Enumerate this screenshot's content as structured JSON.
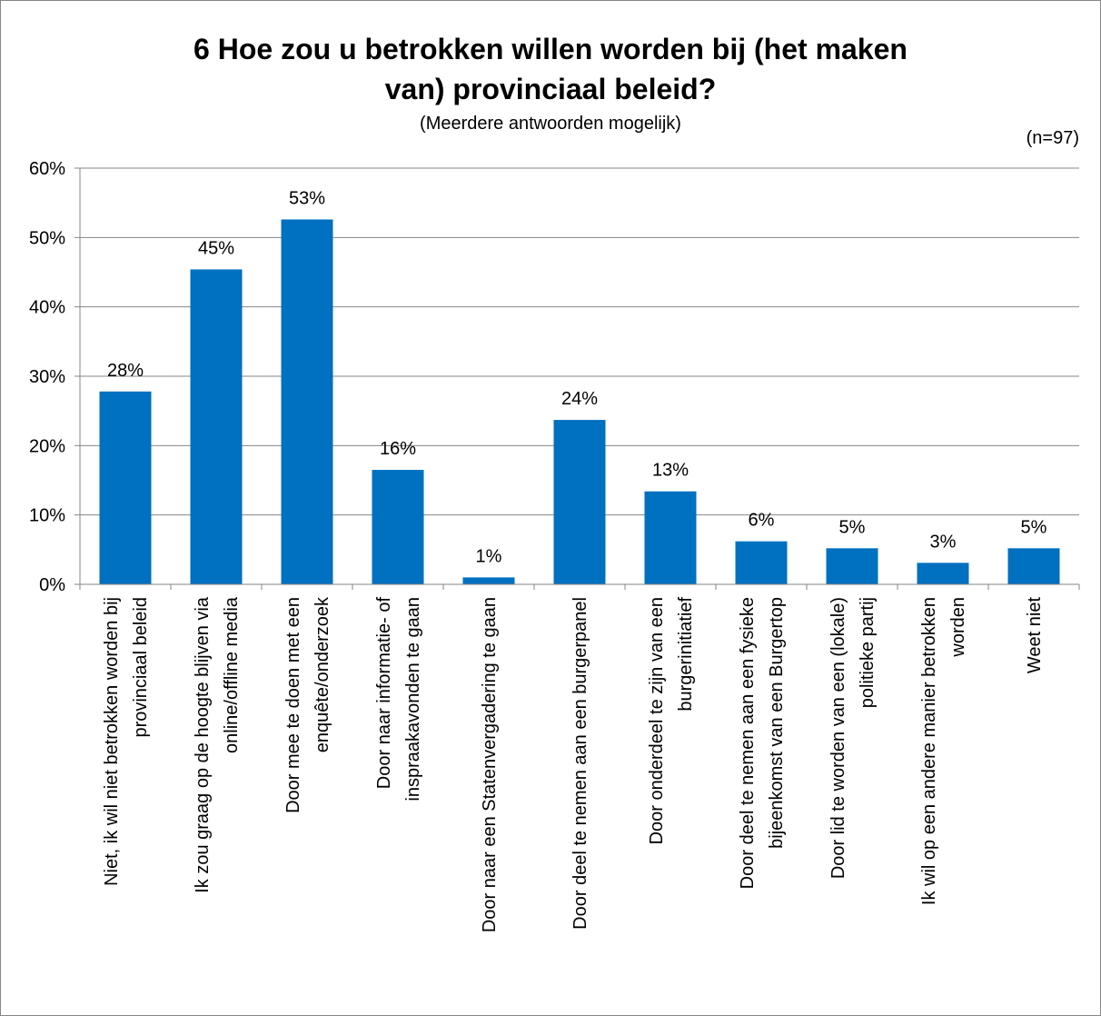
{
  "chart_data": {
    "type": "bar",
    "title_line1": "6 Hoe zou u betrokken willen worden bij (het maken",
    "title_line2": "van) provinciaal beleid?",
    "subtitle": "(Meerdere antwoorden mogelijk)",
    "note": "(n=97)",
    "ylim": [
      0,
      60
    ],
    "yticks": [
      0,
      10,
      20,
      30,
      40,
      50,
      60
    ],
    "ytick_labels": [
      "0%",
      "10%",
      "20%",
      "30%",
      "40%",
      "50%",
      "60%"
    ],
    "grid": true,
    "bar_color": "#0070c0",
    "categories": [
      [
        "Niet, ik wil niet betrokken worden bij",
        "provinciaal beleid"
      ],
      [
        "Ik zou graag op de hoogte blijven via",
        "online/offline media"
      ],
      [
        "Door mee te doen met een",
        "enquête/onderzoek"
      ],
      [
        "Door naar informatie- of",
        "inspraakavonden te gaan"
      ],
      [
        "Door naar een Statenvergadering te gaan"
      ],
      [
        "Door deel te nemen aan een burgerpanel"
      ],
      [
        "Door onderdeel te zijn van een",
        "burgerinitiatief"
      ],
      [
        "Door deel te nemen aan een fysieke",
        "bijeenkomst van een Burgertop"
      ],
      [
        "Door lid te worden van een (lokale)",
        "politieke partij"
      ],
      [
        "Ik wil op een andere manier betrokken",
        "worden"
      ],
      [
        "Weet niet"
      ]
    ],
    "values": [
      27.8,
      45.4,
      52.6,
      16.5,
      1.0,
      23.7,
      13.4,
      6.2,
      5.2,
      3.1,
      5.2
    ],
    "data_labels": [
      "28%",
      "45%",
      "53%",
      "16%",
      "1%",
      "24%",
      "13%",
      "6%",
      "5%",
      "3%",
      "5%"
    ]
  }
}
